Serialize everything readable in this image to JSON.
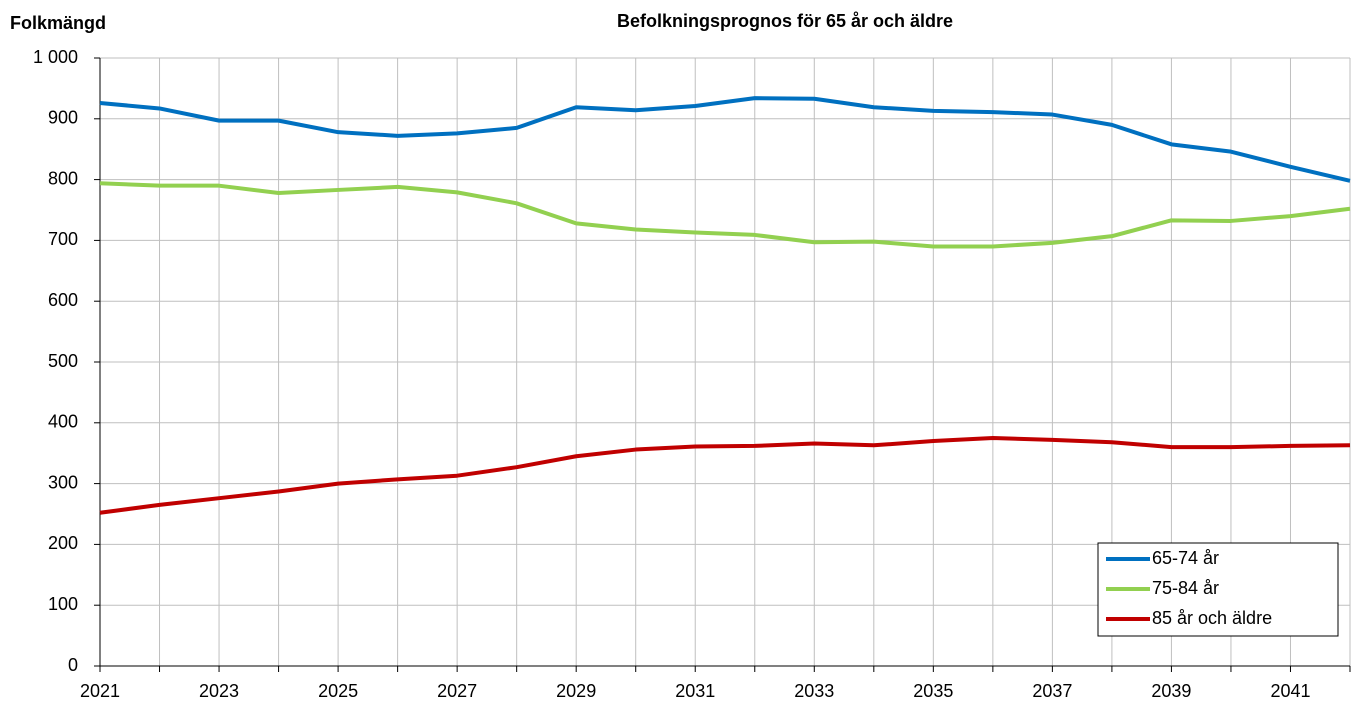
{
  "chart_data": {
    "type": "line",
    "title": "Befolkningsprognos för 65 år och äldre",
    "y_label": "Folkmängd",
    "x": [
      2021,
      2022,
      2023,
      2024,
      2025,
      2026,
      2027,
      2028,
      2029,
      2030,
      2031,
      2032,
      2033,
      2034,
      2035,
      2036,
      2037,
      2038,
      2039,
      2040,
      2041,
      2042
    ],
    "series": [
      {
        "name": "65-74 år",
        "color": "#0070c0",
        "values": [
          926,
          917,
          897,
          897,
          878,
          872,
          876,
          885,
          919,
          914,
          921,
          934,
          933,
          919,
          913,
          911,
          907,
          890,
          858,
          846,
          821,
          798
        ]
      },
      {
        "name": "75-84 år",
        "color": "#92d050",
        "values": [
          794,
          790,
          790,
          778,
          783,
          788,
          779,
          761,
          728,
          718,
          713,
          709,
          697,
          698,
          690,
          690,
          696,
          707,
          733,
          732,
          740,
          752
        ]
      },
      {
        "name": "85 år och äldre",
        "color": "#c00000",
        "values": [
          252,
          265,
          276,
          287,
          300,
          307,
          313,
          327,
          345,
          356,
          361,
          362,
          366,
          363,
          370,
          375,
          372,
          368,
          360,
          360,
          362,
          363
        ]
      }
    ],
    "xlim": [
      2021,
      2042
    ],
    "xticks": [
      2021,
      2023,
      2025,
      2027,
      2029,
      2031,
      2033,
      2035,
      2037,
      2039,
      2041
    ],
    "ylim": [
      0,
      1000
    ],
    "yticks": [
      0,
      100,
      200,
      300,
      400,
      500,
      600,
      700,
      800,
      900,
      {
        "value": 1000,
        "label": "1 000"
      }
    ],
    "grid": true,
    "legend": "lower right"
  }
}
